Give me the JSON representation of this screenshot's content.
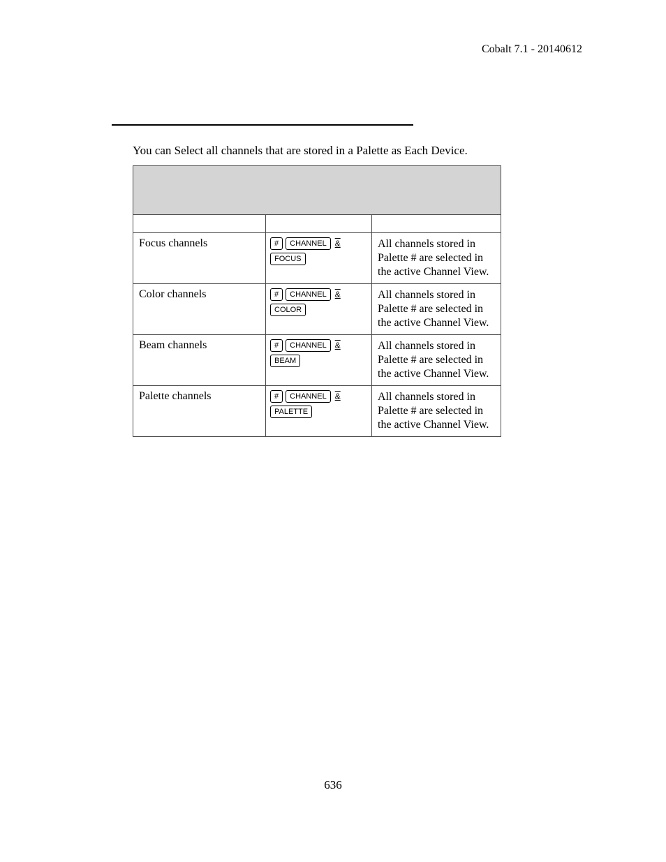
{
  "header": {
    "text": "Cobalt 7.1 - 20140612"
  },
  "intro": {
    "text": "You can Select all channels that are stored in a Palette as Each Device."
  },
  "table": {
    "rows": [
      {
        "label": "Focus channels",
        "keys": [
          "#",
          "CHANNEL",
          "&",
          "FOCUS"
        ],
        "description": "All channels stored in Palette # are selected in the active Channel View."
      },
      {
        "label": "Color channels",
        "keys": [
          "#",
          "CHANNEL",
          "&",
          "COLOR"
        ],
        "description": "All channels stored in Palette # are selected in the active Channel View."
      },
      {
        "label": "Beam channels",
        "keys": [
          "#",
          "CHANNEL",
          "&",
          "BEAM"
        ],
        "description": "All channels stored in Palette # are selected in the active Channel View."
      },
      {
        "label": "Palette channels",
        "keys": [
          "#",
          "CHANNEL",
          "&",
          "PALETTE"
        ],
        "description": "All channels stored in Palette # are selected in the active Channel View."
      }
    ]
  },
  "pageNumber": "636"
}
